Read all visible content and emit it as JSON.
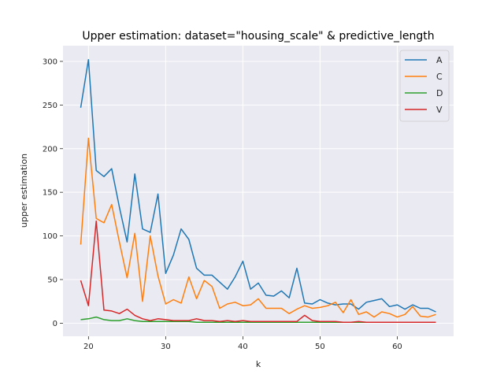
{
  "chart_data": {
    "type": "line",
    "title": "Upper estimation: dataset=\"housing_scale\" & predictive_length",
    "xlabel": "k",
    "ylabel": "upper estimation",
    "xlim": [
      16.7,
      67.3
    ],
    "ylim": [
      -15,
      318
    ],
    "xticks": [
      20,
      30,
      40,
      50,
      60
    ],
    "yticks": [
      0,
      50,
      100,
      150,
      200,
      250,
      300
    ],
    "grid": true,
    "legend_position": "top-right",
    "x": [
      19,
      20,
      21,
      22,
      23,
      24,
      25,
      26,
      27,
      28,
      29,
      30,
      31,
      32,
      33,
      34,
      35,
      36,
      37,
      38,
      39,
      40,
      41,
      42,
      43,
      44,
      45,
      46,
      47,
      48,
      49,
      50,
      51,
      52,
      53,
      54,
      55,
      56,
      57,
      58,
      59,
      60,
      61,
      62,
      63,
      64,
      65
    ],
    "series": [
      {
        "name": "A",
        "color": "#1f77b4",
        "values": [
          247,
          302,
          175,
          168,
          177,
          133,
          93,
          171,
          108,
          104,
          148,
          57,
          78,
          108,
          96,
          63,
          55,
          55,
          47,
          39,
          53,
          71,
          39,
          46,
          32,
          31,
          37,
          29,
          63,
          23,
          22,
          27,
          23,
          21,
          22,
          22,
          16,
          24,
          26,
          28,
          19,
          21,
          16,
          21,
          17,
          17,
          13
        ]
      },
      {
        "name": "C",
        "color": "#ff7f0e",
        "values": [
          90,
          212,
          120,
          115,
          136,
          93,
          52,
          103,
          25,
          100,
          54,
          22,
          27,
          23,
          53,
          28,
          49,
          42,
          17,
          22,
          24,
          20,
          21,
          28,
          17,
          17,
          17,
          11,
          16,
          20,
          17,
          18,
          20,
          24,
          12,
          27,
          10,
          13,
          7,
          13,
          11,
          7,
          10,
          19,
          8,
          7,
          10
        ]
      },
      {
        "name": "D",
        "color": "#2ca02c",
        "values": [
          4,
          5,
          7,
          4,
          3,
          3,
          5,
          3,
          2,
          2,
          2,
          2,
          2,
          2,
          2,
          1,
          1,
          1,
          1,
          1,
          1,
          1,
          1,
          1,
          1,
          1,
          1,
          1,
          1,
          1,
          1,
          1,
          1,
          1,
          1,
          1,
          1,
          1,
          1,
          1,
          1,
          1,
          1,
          1,
          1,
          1,
          1
        ]
      },
      {
        "name": "V",
        "color": "#d62728",
        "values": [
          49,
          20,
          117,
          15,
          14,
          11,
          16,
          9,
          5,
          3,
          5,
          4,
          3,
          3,
          3,
          5,
          3,
          3,
          2,
          3,
          2,
          3,
          2,
          2,
          2,
          2,
          2,
          2,
          2,
          9,
          3,
          2,
          2,
          2,
          1,
          1,
          2,
          1,
          1,
          1,
          1,
          1,
          1,
          1,
          1,
          1,
          1
        ]
      }
    ]
  }
}
